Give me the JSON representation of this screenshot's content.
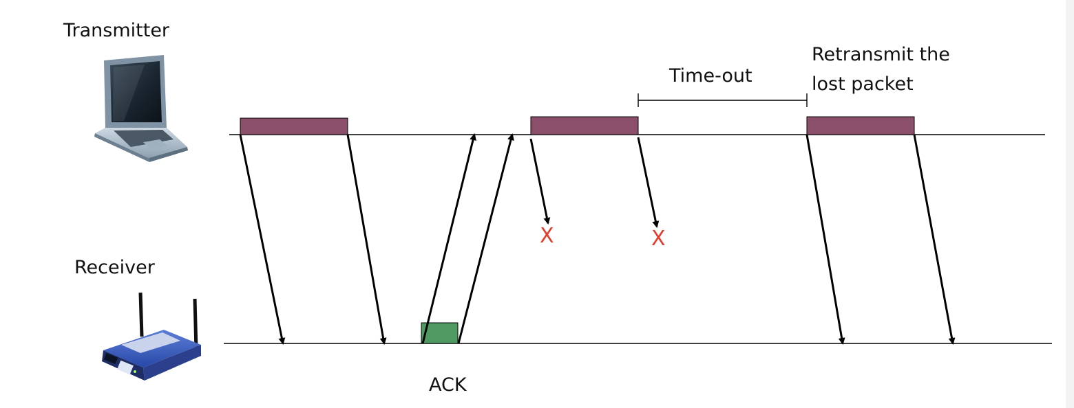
{
  "labels": {
    "transmitter": "Transmitter",
    "receiver": "Receiver",
    "timeout": "Time-out",
    "retransmit_line1": "Retransmit the",
    "retransmit_line2": "lost packet",
    "ack": "ACK",
    "lost_mark": "X"
  },
  "icons": {
    "transmitter": "laptop-icon",
    "receiver": "wireless-router-icon"
  },
  "colors": {
    "data_packet": "#8b4f6b",
    "ack_packet": "#4f9a63",
    "lost_mark": "#e53b2c",
    "line": "#000000"
  }
}
